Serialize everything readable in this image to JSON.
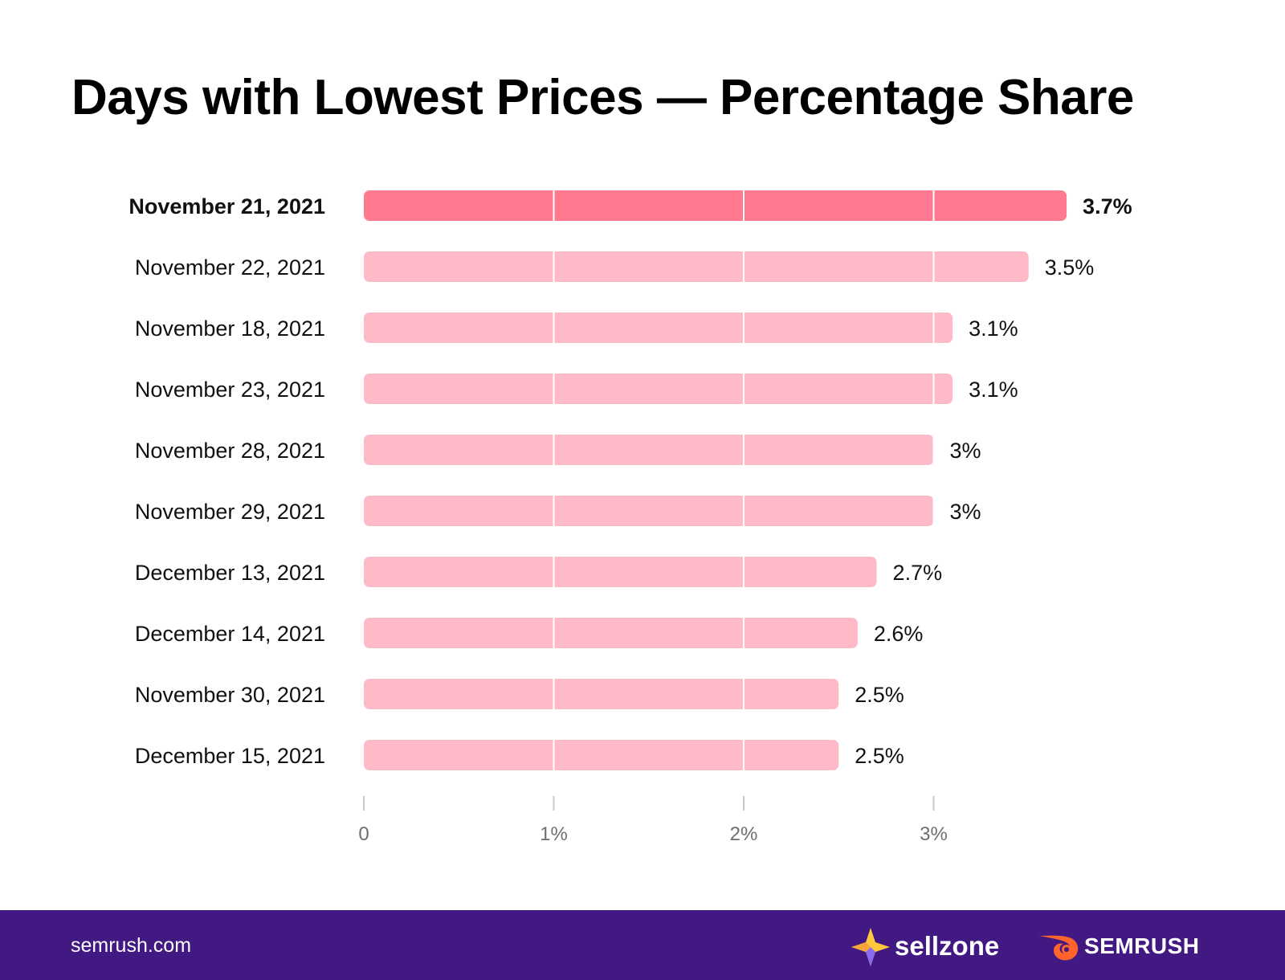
{
  "colors": {
    "highlight_bar": "#ff7a90",
    "bar": "#ffbac8",
    "gridline": "#ffffff",
    "tick": "#c8c8c8",
    "tick_label": "#6e6e6e",
    "footer_bg": "#421983"
  },
  "footer": {
    "site": "semrush.com",
    "sellzone": "sellzone",
    "semrush": "SEMRUSH"
  },
  "icons": {
    "sellzone": "sellzone-star-icon",
    "semrush": "semrush-fire-icon"
  },
  "chart_data": {
    "type": "bar",
    "orientation": "horizontal",
    "title": "Days with Lowest Prices — Percentage Share",
    "categories": [
      "November 21, 2021",
      "November 22, 2021",
      "November 18, 2021",
      "November 23, 2021",
      "November 28, 2021",
      "November 29, 2021",
      "December 13, 2021",
      "December 14, 2021",
      "November 30, 2021",
      "December 15, 2021"
    ],
    "values": [
      3.7,
      3.5,
      3.1,
      3.1,
      3.0,
      3.0,
      2.7,
      2.6,
      2.5,
      2.5
    ],
    "value_labels": [
      "3.7%",
      "3.5%",
      "3.1%",
      "3.1%",
      "3%",
      "3%",
      "2.7%",
      "2.6%",
      "2.5%",
      "2.5%"
    ],
    "highlight_index": 0,
    "x_ticks": [
      0,
      1,
      2,
      3
    ],
    "x_tick_labels": [
      "0",
      "1%",
      "2%",
      "3%"
    ],
    "xlim": [
      0,
      3.7
    ],
    "grid": true,
    "xlabel": "",
    "ylabel": ""
  }
}
